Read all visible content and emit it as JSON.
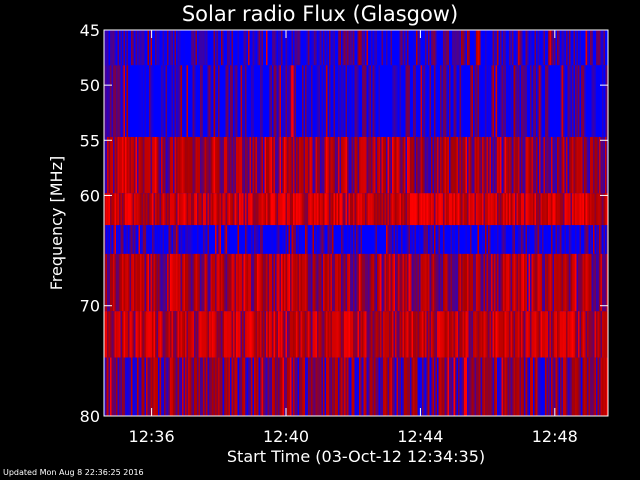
{
  "chart_data": {
    "type": "heatmap",
    "title": "Solar radio Flux (Glasgow)",
    "xlabel": "Start Time (03-Oct-12 12:34:35)",
    "ylabel": "Frequency [MHz]",
    "x_ticks": [
      "12:36",
      "12:40",
      "12:44",
      "12:48"
    ],
    "x_tick_minutes": [
      1.417,
      5.417,
      9.417,
      13.417
    ],
    "xlim_minutes": [
      0,
      15.0
    ],
    "y_ticks": [
      45,
      50,
      55,
      60,
      70,
      80
    ],
    "ylim": [
      45,
      80
    ],
    "frequency_bands": [
      {
        "f_low": 45.0,
        "f_high": 48.2,
        "level": 0.05
      },
      {
        "f_low": 48.2,
        "f_high": 54.7,
        "level": 0.03
      },
      {
        "f_low": 54.7,
        "f_high": 59.8,
        "level": 0.45
      },
      {
        "f_low": 59.8,
        "f_high": 62.7,
        "level": 0.65
      },
      {
        "f_low": 62.7,
        "f_high": 65.3,
        "level": 0.02
      },
      {
        "f_low": 65.3,
        "f_high": 70.5,
        "level": 0.5
      },
      {
        "f_low": 70.5,
        "f_high": 74.7,
        "level": 0.6
      },
      {
        "f_low": 74.7,
        "f_high": 80.0,
        "level": 0.35
      }
    ],
    "bursts": [
      {
        "time_minutes": 5.6,
        "f_low": 48.2,
        "f_high": 54.7
      }
    ],
    "colors": {
      "low": "#0000ff",
      "mid": "#aa0000",
      "high": "#ff0000",
      "background": "#000000",
      "foreground": "#ffffff"
    }
  },
  "footer": {
    "updated": "Updated Mon Aug  8 22:36:25 2016"
  }
}
